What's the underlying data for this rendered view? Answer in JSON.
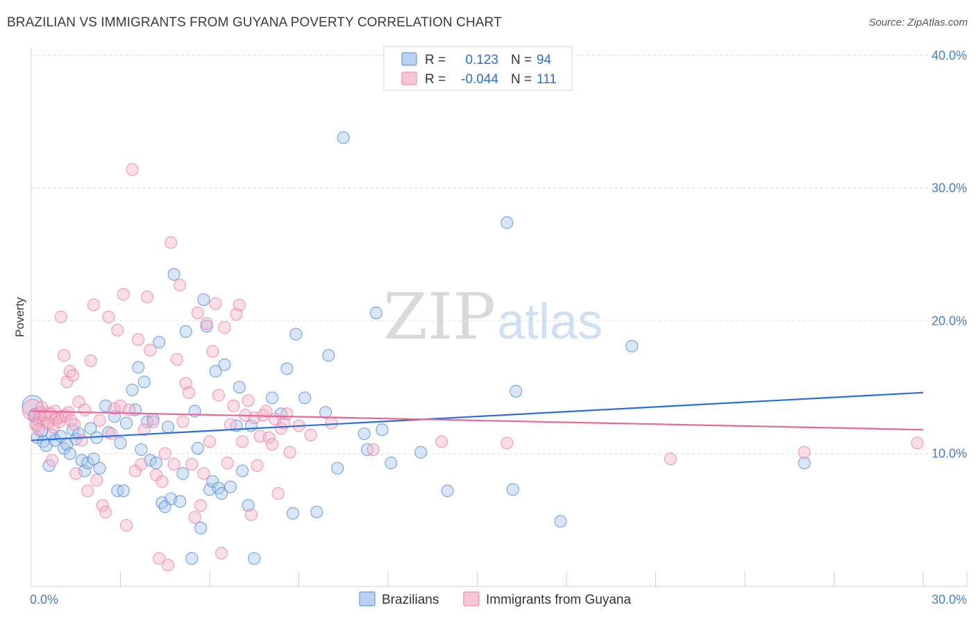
{
  "header": {
    "title": "BRAZILIAN VS IMMIGRANTS FROM GUYANA POVERTY CORRELATION CHART",
    "source": "Source: ZipAtlas.com"
  },
  "watermark": {
    "zip": "ZIP",
    "atlas": "atlas"
  },
  "legend_top": {
    "rows": [
      {
        "r_label": "R =",
        "r_value": "0.123",
        "n_label": "N =",
        "n_value": "94",
        "color": "#4a86d8"
      },
      {
        "r_label": "R =",
        "r_value": "-0.044",
        "n_label": "N =",
        "n_value": "111",
        "color": "#ec7aa0"
      }
    ]
  },
  "chart_data": {
    "type": "scatter",
    "ylabel": "Poverty",
    "xlim": [
      0,
      30
    ],
    "ylim": [
      0,
      40
    ],
    "x_tick_labels": [
      {
        "value": 0,
        "label": "0.0%"
      },
      {
        "value": 30,
        "label": "30.0%"
      }
    ],
    "y_tick_labels": [
      {
        "value": 10,
        "label": "10.0%"
      },
      {
        "value": 20,
        "label": "20.0%"
      },
      {
        "value": 30,
        "label": "30.0%"
      },
      {
        "value": 40,
        "label": "40.0%"
      }
    ],
    "grid": true,
    "legend": "bottom-center",
    "series": [
      {
        "name": "Brazilians",
        "color": "#4a86d8",
        "fill": "#a9c7ef",
        "trend": {
          "x": [
            0,
            30
          ],
          "y": [
            11.0,
            14.6
          ]
        },
        "points": [
          [
            0.05,
            13.6
          ],
          [
            0.1,
            12.8
          ],
          [
            0.2,
            11.2
          ],
          [
            0.3,
            13.1
          ],
          [
            0.4,
            10.9
          ],
          [
            0.5,
            10.6
          ],
          [
            0.6,
            9.1
          ],
          [
            0.7,
            11.4
          ],
          [
            0.8,
            11.0
          ],
          [
            1.0,
            11.3
          ],
          [
            1.1,
            10.4
          ],
          [
            1.2,
            10.7
          ],
          [
            1.3,
            10.0
          ],
          [
            1.4,
            11.8
          ],
          [
            1.5,
            11.1
          ],
          [
            1.6,
            11.5
          ],
          [
            1.7,
            9.5
          ],
          [
            1.8,
            8.7
          ],
          [
            1.9,
            9.3
          ],
          [
            2.0,
            11.9
          ],
          [
            2.1,
            9.6
          ],
          [
            2.2,
            11.2
          ],
          [
            2.3,
            8.9
          ],
          [
            2.5,
            13.6
          ],
          [
            2.6,
            11.6
          ],
          [
            2.8,
            12.8
          ],
          [
            2.9,
            7.2
          ],
          [
            3.0,
            10.8
          ],
          [
            3.1,
            7.2
          ],
          [
            3.2,
            12.3
          ],
          [
            3.4,
            14.8
          ],
          [
            3.5,
            13.3
          ],
          [
            3.6,
            16.5
          ],
          [
            3.7,
            10.3
          ],
          [
            3.8,
            15.4
          ],
          [
            3.9,
            12.4
          ],
          [
            4.0,
            9.5
          ],
          [
            4.1,
            12.6
          ],
          [
            4.2,
            9.3
          ],
          [
            4.3,
            18.4
          ],
          [
            4.4,
            6.3
          ],
          [
            4.5,
            6.0
          ],
          [
            4.6,
            12.0
          ],
          [
            4.7,
            6.6
          ],
          [
            4.8,
            23.5
          ],
          [
            5.0,
            6.4
          ],
          [
            5.1,
            8.5
          ],
          [
            5.2,
            19.2
          ],
          [
            5.4,
            2.1
          ],
          [
            5.5,
            13.2
          ],
          [
            5.6,
            10.4
          ],
          [
            5.7,
            4.4
          ],
          [
            5.8,
            21.6
          ],
          [
            5.9,
            19.6
          ],
          [
            6.0,
            7.3
          ],
          [
            6.1,
            7.9
          ],
          [
            6.2,
            16.2
          ],
          [
            6.3,
            7.4
          ],
          [
            6.4,
            7.0
          ],
          [
            6.5,
            16.7
          ],
          [
            6.7,
            7.5
          ],
          [
            6.9,
            12.1
          ],
          [
            7.0,
            15.0
          ],
          [
            7.1,
            8.7
          ],
          [
            7.3,
            6.1
          ],
          [
            7.4,
            12.1
          ],
          [
            7.5,
            2.1
          ],
          [
            8.1,
            14.2
          ],
          [
            8.4,
            13.0
          ],
          [
            8.6,
            16.4
          ],
          [
            8.8,
            5.5
          ],
          [
            8.9,
            19.0
          ],
          [
            9.2,
            14.2
          ],
          [
            9.6,
            5.6
          ],
          [
            9.9,
            13.1
          ],
          [
            10.0,
            17.4
          ],
          [
            10.3,
            8.9
          ],
          [
            10.5,
            33.8
          ],
          [
            11.2,
            11.5
          ],
          [
            11.3,
            10.3
          ],
          [
            11.6,
            20.6
          ],
          [
            11.8,
            11.8
          ],
          [
            12.1,
            9.3
          ],
          [
            13.1,
            10.1
          ],
          [
            14.0,
            7.2
          ],
          [
            16.0,
            27.4
          ],
          [
            16.2,
            7.3
          ],
          [
            16.3,
            14.7
          ],
          [
            17.8,
            4.9
          ],
          [
            20.2,
            18.1
          ],
          [
            26.0,
            9.3
          ],
          [
            0.15,
            13.0
          ],
          [
            0.25,
            12.5
          ],
          [
            0.35,
            11.7
          ]
        ]
      },
      {
        "name": "Immigrants from Guyana",
        "color": "#ec7aa0",
        "fill": "#f5b9cd",
        "trend": {
          "x": [
            0,
            30
          ],
          "y": [
            13.2,
            11.8
          ]
        },
        "points": [
          [
            0.05,
            13.3
          ],
          [
            0.1,
            12.9
          ],
          [
            0.2,
            12.1
          ],
          [
            0.3,
            12.7
          ],
          [
            0.4,
            12.6
          ],
          [
            0.5,
            13.1
          ],
          [
            0.6,
            12.4
          ],
          [
            0.7,
            9.5
          ],
          [
            0.8,
            13.2
          ],
          [
            0.9,
            12.7
          ],
          [
            1.0,
            20.3
          ],
          [
            1.1,
            17.4
          ],
          [
            1.2,
            15.4
          ],
          [
            1.3,
            16.2
          ],
          [
            1.4,
            15.9
          ],
          [
            1.5,
            8.5
          ],
          [
            1.6,
            13.9
          ],
          [
            1.7,
            11.0
          ],
          [
            1.8,
            13.3
          ],
          [
            1.9,
            7.2
          ],
          [
            2.0,
            17.0
          ],
          [
            2.1,
            21.2
          ],
          [
            2.2,
            8.0
          ],
          [
            2.3,
            12.5
          ],
          [
            2.4,
            6.1
          ],
          [
            2.5,
            5.6
          ],
          [
            2.6,
            20.3
          ],
          [
            2.7,
            11.5
          ],
          [
            2.8,
            13.4
          ],
          [
            2.9,
            19.3
          ],
          [
            3.0,
            13.6
          ],
          [
            3.1,
            22.0
          ],
          [
            3.2,
            4.6
          ],
          [
            3.3,
            13.3
          ],
          [
            3.4,
            31.4
          ],
          [
            3.5,
            8.7
          ],
          [
            3.6,
            18.6
          ],
          [
            3.7,
            9.2
          ],
          [
            3.8,
            11.8
          ],
          [
            3.9,
            21.8
          ],
          [
            4.0,
            17.8
          ],
          [
            4.1,
            12.4
          ],
          [
            4.2,
            8.4
          ],
          [
            4.3,
            2.1
          ],
          [
            4.4,
            7.9
          ],
          [
            4.5,
            10.0
          ],
          [
            4.6,
            1.6
          ],
          [
            4.7,
            25.9
          ],
          [
            4.8,
            9.2
          ],
          [
            4.9,
            17.1
          ],
          [
            5.0,
            22.7
          ],
          [
            5.1,
            12.4
          ],
          [
            5.2,
            15.3
          ],
          [
            5.3,
            14.6
          ],
          [
            5.4,
            9.2
          ],
          [
            5.5,
            5.2
          ],
          [
            5.6,
            20.6
          ],
          [
            5.7,
            6.1
          ],
          [
            5.8,
            8.5
          ],
          [
            5.9,
            19.8
          ],
          [
            6.0,
            10.9
          ],
          [
            6.1,
            17.7
          ],
          [
            6.2,
            21.3
          ],
          [
            6.3,
            14.4
          ],
          [
            6.4,
            2.5
          ],
          [
            6.5,
            19.5
          ],
          [
            6.6,
            9.3
          ],
          [
            6.7,
            12.2
          ],
          [
            6.8,
            13.6
          ],
          [
            6.9,
            20.5
          ],
          [
            7.0,
            21.2
          ],
          [
            7.1,
            10.9
          ],
          [
            7.2,
            12.9
          ],
          [
            7.3,
            14.0
          ],
          [
            7.4,
            5.4
          ],
          [
            7.5,
            12.7
          ],
          [
            7.6,
            9.1
          ],
          [
            7.7,
            11.3
          ],
          [
            7.8,
            12.9
          ],
          [
            7.9,
            13.2
          ],
          [
            8.0,
            11.2
          ],
          [
            8.1,
            10.7
          ],
          [
            8.2,
            12.6
          ],
          [
            8.3,
            7.0
          ],
          [
            8.4,
            11.9
          ],
          [
            8.5,
            12.3
          ],
          [
            8.6,
            13.0
          ],
          [
            8.7,
            10.1
          ],
          [
            9.0,
            12.1
          ],
          [
            9.4,
            11.4
          ],
          [
            10.1,
            12.3
          ],
          [
            11.5,
            10.3
          ],
          [
            13.8,
            10.9
          ],
          [
            16.0,
            10.8
          ],
          [
            21.5,
            9.6
          ],
          [
            26.0,
            10.1
          ],
          [
            29.8,
            10.8
          ],
          [
            0.15,
            12.2
          ],
          [
            0.25,
            11.8
          ],
          [
            0.35,
            13.5
          ],
          [
            0.45,
            12.9
          ],
          [
            0.55,
            12.3
          ],
          [
            0.65,
            13.0
          ],
          [
            0.75,
            12.0
          ],
          [
            0.85,
            12.6
          ],
          [
            0.95,
            12.4
          ],
          [
            1.05,
            12.8
          ],
          [
            1.15,
            12.9
          ],
          [
            1.25,
            13.1
          ],
          [
            1.35,
            12.5
          ],
          [
            1.45,
            12.2
          ]
        ]
      }
    ]
  }
}
